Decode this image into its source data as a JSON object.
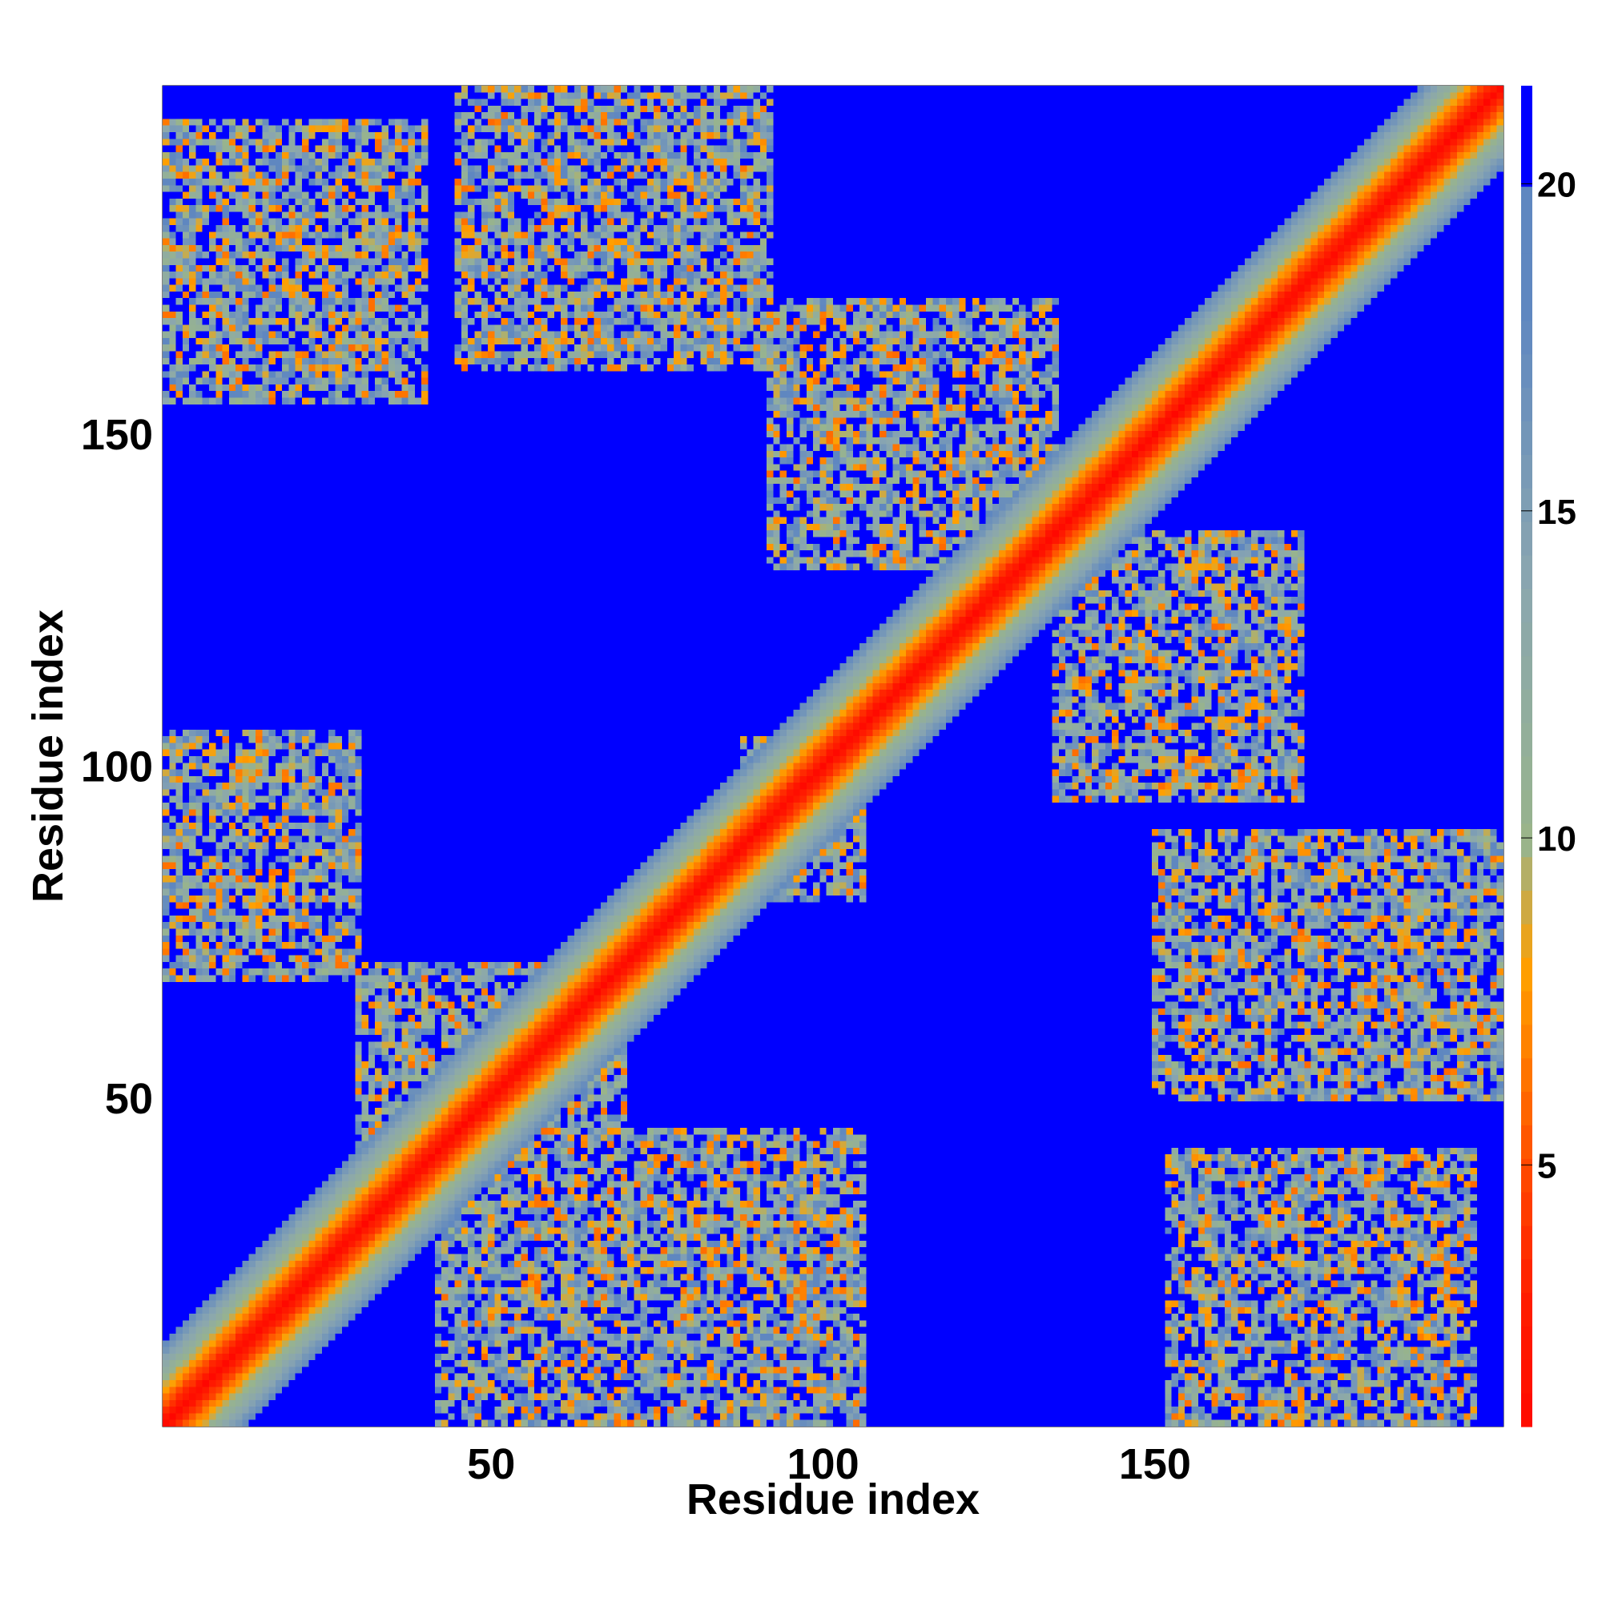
{
  "chart_data": {
    "type": "heatmap",
    "title": "",
    "xlabel": "Residue index",
    "ylabel": "Residue index",
    "xlim": [
      1,
      202
    ],
    "ylim": [
      1,
      202
    ],
    "x_ticks": [
      50,
      100,
      150
    ],
    "y_ticks": [
      50,
      100,
      150
    ],
    "colorbar": {
      "ticks": [
        5,
        10,
        15,
        20
      ],
      "range": [
        1,
        21.5
      ],
      "colors": [
        "#ff0000",
        "#ff1e00",
        "#ff4b00",
        "#ff7800",
        "#ffa000",
        "#98b48c",
        "#8aa6b0",
        "#5f87c0",
        "#0000ff"
      ],
      "stops": [
        0,
        3,
        5,
        6.5,
        8,
        10,
        14,
        18,
        20
      ]
    },
    "matrix_description_values": {
      "diagonal_value": 1,
      "background_value": 21,
      "diagonal_band_halfwidth_residues": 12,
      "off_diagonal_contact_value_range": [
        6,
        19
      ],
      "contact_regions": [
        {
          "x": [
            1,
            30
          ],
          "y": [
            68,
            105
          ]
        },
        {
          "x": [
            30,
            70
          ],
          "y": [
            40,
            70
          ]
        },
        {
          "x": [
            42,
            106
          ],
          "y": [
            1,
            45
          ]
        },
        {
          "x": [
            45,
            92
          ],
          "y": [
            160,
            202
          ]
        },
        {
          "x": [
            92,
            135
          ],
          "y": [
            130,
            170
          ]
        },
        {
          "x": [
            88,
            106
          ],
          "y": [
            80,
            104
          ]
        },
        {
          "x": [
            135,
            172
          ],
          "y": [
            95,
            135
          ]
        },
        {
          "x": [
            150,
            202
          ],
          "y": [
            50,
            90
          ]
        },
        {
          "x": [
            0,
            40
          ],
          "y": [
            155,
            197
          ]
        },
        {
          "x": [
            152,
            198
          ],
          "y": [
            1,
            42
          ]
        }
      ]
    }
  }
}
